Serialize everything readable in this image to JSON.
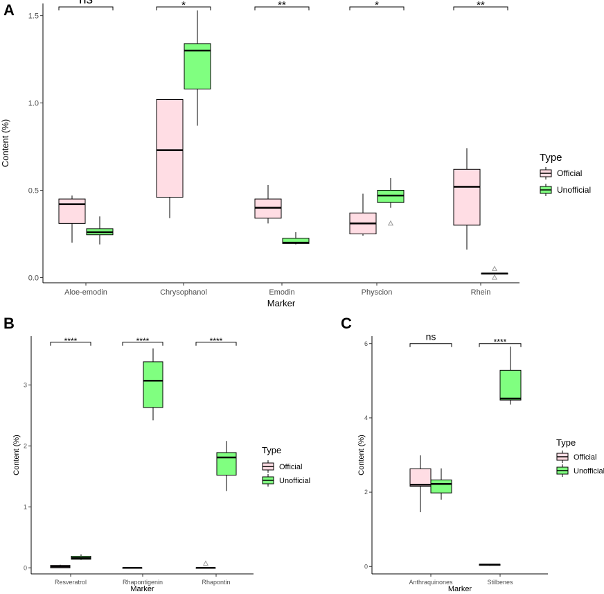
{
  "colors": {
    "official": "#ffdde4",
    "unofficial": "#80ff80",
    "outlier": "#9a9a9a",
    "axis": "#000000"
  },
  "chart_data": [
    {
      "panel": "A",
      "type": "box",
      "title": "",
      "xlabel": "Marker",
      "ylabel": "Content (%)",
      "ylim": [
        -0.03,
        1.57
      ],
      "yticks": [
        0.0,
        0.5,
        1.0,
        1.5
      ],
      "ytick_labels": [
        "0.0",
        "0.5",
        "1.0",
        "1.5"
      ],
      "categories": [
        "Aloe-emodin",
        "Chrysophanol",
        "Emodin",
        "Physcion",
        "Rhein"
      ],
      "legend": {
        "title": "Type",
        "entries": [
          "Official",
          "Unofficial"
        ]
      },
      "significance": [
        "ns",
        "*",
        "**",
        "*",
        "**"
      ],
      "sig_y": 1.55,
      "series": [
        {
          "name": "Official",
          "boxes": [
            {
              "min": 0.2,
              "q1": 0.31,
              "median": 0.42,
              "q3": 0.45,
              "max": 0.47,
              "outliers": []
            },
            {
              "min": 0.34,
              "q1": 0.46,
              "median": 0.73,
              "q3": 1.02,
              "max": 1.02,
              "outliers": []
            },
            {
              "min": 0.31,
              "q1": 0.34,
              "median": 0.4,
              "q3": 0.45,
              "max": 0.53,
              "outliers": []
            },
            {
              "min": 0.24,
              "q1": 0.25,
              "median": 0.31,
              "q3": 0.37,
              "max": 0.48,
              "outliers": []
            },
            {
              "min": 0.16,
              "q1": 0.3,
              "median": 0.52,
              "q3": 0.62,
              "max": 0.74,
              "outliers": []
            }
          ]
        },
        {
          "name": "Unofficial",
          "boxes": [
            {
              "min": 0.19,
              "q1": 0.245,
              "median": 0.26,
              "q3": 0.28,
              "max": 0.35,
              "outliers": []
            },
            {
              "min": 0.87,
              "q1": 1.08,
              "median": 1.3,
              "q3": 1.34,
              "max": 1.53,
              "outliers": []
            },
            {
              "min": 0.19,
              "q1": 0.195,
              "median": 0.2,
              "q3": 0.225,
              "max": 0.26,
              "outliers": []
            },
            {
              "min": 0.4,
              "q1": 0.43,
              "median": 0.47,
              "q3": 0.5,
              "max": 0.57,
              "outliers": [
                0.31
              ]
            },
            {
              "min": 0.02,
              "q1": 0.02,
              "median": 0.023,
              "q3": 0.025,
              "max": 0.025,
              "outliers": [
                0.05,
                0.0
              ]
            }
          ]
        }
      ]
    },
    {
      "panel": "B",
      "type": "box",
      "title": "",
      "xlabel": "Marker",
      "ylabel": "Content (%)",
      "ylim": [
        -0.1,
        3.8
      ],
      "yticks": [
        0,
        1,
        2,
        3
      ],
      "ytick_labels": [
        "0",
        "1",
        "2",
        "3"
      ],
      "categories": [
        "Resveratrol",
        "Rhapontigenin",
        "Rhapontin"
      ],
      "legend": {
        "title": "Type",
        "entries": [
          "Official",
          "Unofficial"
        ]
      },
      "significance": [
        "****",
        "****",
        "****"
      ],
      "sig_y": 3.7,
      "series": [
        {
          "name": "Official",
          "boxes": [
            {
              "min": 0.0,
              "q1": 0.0,
              "median": 0.02,
              "q3": 0.04,
              "max": 0.05,
              "outliers": []
            },
            {
              "min": 0.0,
              "q1": 0.0,
              "median": 0.0,
              "q3": 0.0,
              "max": 0.0,
              "outliers": []
            },
            {
              "min": 0.0,
              "q1": 0.0,
              "median": 0.0,
              "q3": 0.0,
              "max": 0.0,
              "outliers": [
                0.07
              ]
            }
          ]
        },
        {
          "name": "Unofficial",
          "boxes": [
            {
              "min": 0.13,
              "q1": 0.14,
              "median": 0.16,
              "q3": 0.19,
              "max": 0.22,
              "outliers": []
            },
            {
              "min": 2.42,
              "q1": 2.63,
              "median": 3.07,
              "q3": 3.38,
              "max": 3.6,
              "outliers": []
            },
            {
              "min": 1.26,
              "q1": 1.52,
              "median": 1.81,
              "q3": 1.89,
              "max": 2.08,
              "outliers": []
            }
          ]
        }
      ]
    },
    {
      "panel": "C",
      "type": "box",
      "title": "",
      "xlabel": "Marker",
      "ylabel": "Content (%)",
      "ylim": [
        -0.2,
        6.2
      ],
      "yticks": [
        0,
        2,
        4,
        6
      ],
      "ytick_labels": [
        "0",
        "2",
        "4",
        "6"
      ],
      "categories": [
        "Anthraquinones",
        "Stilbenes"
      ],
      "legend": {
        "title": "Type",
        "entries": [
          "Official",
          "Unofficial"
        ]
      },
      "significance": [
        "ns",
        "****"
      ],
      "sig_y": 6.0,
      "series": [
        {
          "name": "Official",
          "boxes": [
            {
              "min": 1.46,
              "q1": 2.16,
              "median": 2.2,
              "q3": 2.63,
              "max": 2.99,
              "outliers": []
            },
            {
              "min": 0.02,
              "q1": 0.03,
              "median": 0.05,
              "q3": 0.06,
              "max": 0.07,
              "outliers": []
            }
          ]
        },
        {
          "name": "Unofficial",
          "boxes": [
            {
              "min": 1.8,
              "q1": 1.98,
              "median": 2.22,
              "q3": 2.33,
              "max": 2.64,
              "outliers": []
            },
            {
              "min": 4.36,
              "q1": 4.48,
              "median": 4.52,
              "q3": 5.28,
              "max": 5.92,
              "outliers": []
            }
          ]
        }
      ]
    }
  ]
}
